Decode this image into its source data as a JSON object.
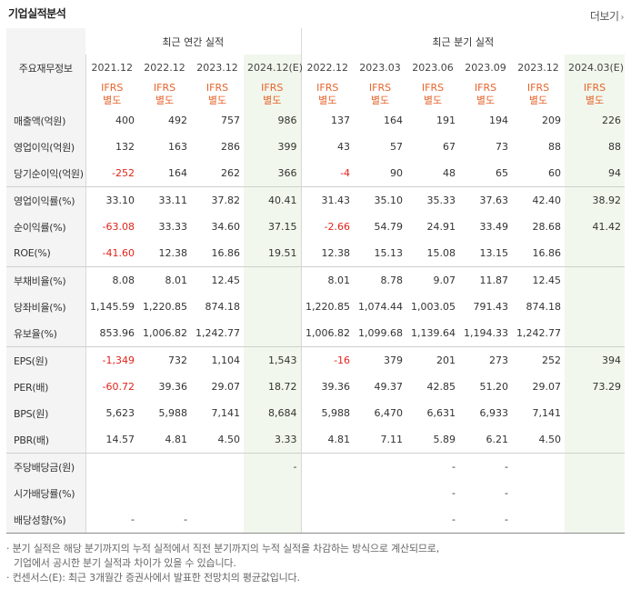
{
  "title": "기업실적분석",
  "more_label": "더보기",
  "more_icon": "chevron-right-icon",
  "header": {
    "row_label": "주요재무정보",
    "annual_group": "최근 연간 실적",
    "quarter_group": "최근 분기 실적",
    "annual_periods": [
      "2021.12",
      "2022.12",
      "2023.12",
      "2024.12(E)"
    ],
    "quarter_periods": [
      "2022.12",
      "2023.03",
      "2023.06",
      "2023.09",
      "2023.12",
      "2024.03(E)"
    ],
    "ifrs_line1": "IFRS",
    "ifrs_line2": "별도"
  },
  "rows": [
    {
      "label": "매출액(억원)",
      "values": [
        "400",
        "492",
        "757",
        "986",
        "137",
        "164",
        "191",
        "194",
        "209",
        "226"
      ],
      "neg": []
    },
    {
      "label": "영업이익(억원)",
      "values": [
        "132",
        "163",
        "286",
        "399",
        "43",
        "57",
        "67",
        "73",
        "88",
        "88"
      ],
      "neg": []
    },
    {
      "label": "당기순이익(억원)",
      "values": [
        "-252",
        "164",
        "262",
        "366",
        "-4",
        "90",
        "48",
        "65",
        "60",
        "94"
      ],
      "neg": [
        0,
        4
      ]
    },
    {
      "label": "영업이익률(%)",
      "values": [
        "33.10",
        "33.11",
        "37.82",
        "40.41",
        "31.43",
        "35.10",
        "35.33",
        "37.63",
        "42.40",
        "38.92"
      ],
      "neg": []
    },
    {
      "label": "순이익률(%)",
      "values": [
        "-63.08",
        "33.33",
        "34.60",
        "37.15",
        "-2.66",
        "54.79",
        "24.91",
        "33.49",
        "28.68",
        "41.42"
      ],
      "neg": [
        0,
        4
      ]
    },
    {
      "label": "ROE(%)",
      "values": [
        "-41.60",
        "12.38",
        "16.86",
        "19.51",
        "12.38",
        "15.13",
        "15.08",
        "13.15",
        "16.86",
        ""
      ],
      "neg": [
        0
      ]
    },
    {
      "label": "부채비율(%)",
      "values": [
        "8.08",
        "8.01",
        "12.45",
        "",
        "8.01",
        "8.78",
        "9.07",
        "11.87",
        "12.45",
        ""
      ],
      "neg": []
    },
    {
      "label": "당좌비율(%)",
      "values": [
        "1,145.59",
        "1,220.85",
        "874.18",
        "",
        "1,220.85",
        "1,074.44",
        "1,003.05",
        "791.43",
        "874.18",
        ""
      ],
      "neg": []
    },
    {
      "label": "유보율(%)",
      "values": [
        "853.96",
        "1,006.82",
        "1,242.77",
        "",
        "1,006.82",
        "1,099.68",
        "1,139.64",
        "1,194.33",
        "1,242.77",
        ""
      ],
      "neg": []
    },
    {
      "label": "EPS(원)",
      "values": [
        "-1,349",
        "732",
        "1,104",
        "1,543",
        "-16",
        "379",
        "201",
        "273",
        "252",
        "394"
      ],
      "neg": [
        0,
        4
      ]
    },
    {
      "label": "PER(배)",
      "values": [
        "-60.72",
        "39.36",
        "29.07",
        "18.72",
        "39.36",
        "49.37",
        "42.85",
        "51.20",
        "29.07",
        "73.29"
      ],
      "neg": [
        0
      ]
    },
    {
      "label": "BPS(원)",
      "values": [
        "5,623",
        "5,988",
        "7,141",
        "8,684",
        "5,988",
        "6,470",
        "6,631",
        "6,933",
        "7,141",
        ""
      ],
      "neg": []
    },
    {
      "label": "PBR(배)",
      "values": [
        "14.57",
        "4.81",
        "4.50",
        "3.33",
        "4.81",
        "7.11",
        "5.89",
        "6.21",
        "4.50",
        ""
      ],
      "neg": []
    },
    {
      "label": "주당배당금(원)",
      "values": [
        "",
        "",
        "",
        "-",
        "",
        "",
        "-",
        "-",
        "",
        ""
      ],
      "neg": []
    },
    {
      "label": "시가배당률(%)",
      "values": [
        "",
        "",
        "",
        "",
        "",
        "",
        "-",
        "-",
        "",
        ""
      ],
      "neg": []
    },
    {
      "label": "배당성향(%)",
      "values": [
        "-",
        "-",
        "",
        "",
        "",
        "",
        "-",
        "-",
        "",
        ""
      ],
      "neg": []
    }
  ],
  "notes": {
    "line1": "· 분기 실적은 해당 분기까지의 누적 실적에서 직전 분기까지의 누적 실적을 차감하는 방식으로 계산되므로,",
    "line2": "기업에서 공시한 분기 실적과 차이가 있을 수 있습니다.",
    "line3": "· 컨센서스(E): 최근 3개월간 증권사에서 발표한 전망치의 평균값입니다."
  },
  "colors": {
    "negative": "#e2231a",
    "ifrs": "#e5642c",
    "estimate_bg": "#f1f7ec",
    "label_bg": "#f4f4f4"
  }
}
